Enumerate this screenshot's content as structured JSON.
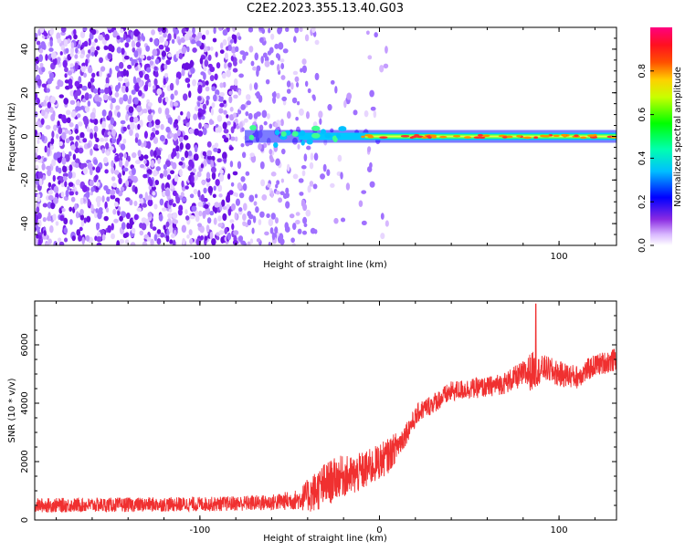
{
  "figure": {
    "title": "C2E2.2023.355.13.40.G03"
  },
  "chart_data": [
    {
      "type": "heatmap",
      "xlabel": "Height of straight line (km)",
      "ylabel": "Frequency (Hz)",
      "xlim": [
        -192,
        132
      ],
      "ylim": [
        -50,
        50
      ],
      "xticks": [
        -100,
        0,
        100
      ],
      "xtick_labels": [
        "-100",
        "",
        "100"
      ],
      "yticks": [
        -40,
        -20,
        0,
        20,
        40
      ],
      "ytick_labels": [
        "-40",
        "-20",
        "0",
        "20",
        "40"
      ],
      "colorbar": {
        "label": "Normalized spectral amplitude",
        "range": [
          0,
          1
        ],
        "ticks": [
          0.0,
          0.2,
          0.4,
          0.6,
          0.8
        ],
        "tick_labels": [
          "0.0",
          "0.2",
          "0.4",
          "0.6",
          "0.8"
        ]
      },
      "features": {
        "noise_region_x": [
          -192,
          -20
        ],
        "signal_line_frequency": 0,
        "signal_start_x": -75,
        "signal_x": [
          -75,
          132
        ]
      },
      "grid": false
    },
    {
      "type": "line",
      "xlabel": "Height of straight line (km)",
      "ylabel": "SNR (10 * v/v)",
      "xlim": [
        -192,
        132
      ],
      "ylim": [
        0,
        7500
      ],
      "xticks": [
        -100,
        0,
        100
      ],
      "xtick_labels": [
        "-100",
        "0",
        "100"
      ],
      "yticks": [
        0,
        2000,
        4000,
        6000
      ],
      "ytick_labels": [
        "0",
        "2000",
        "4000",
        "6000"
      ],
      "line_color": "#f03030",
      "grid": false,
      "envelope": {
        "x": [
          -192,
          -140,
          -90,
          -60,
          -45,
          -38,
          -30,
          -22,
          -15,
          -5,
          5,
          12,
          18,
          22,
          30,
          40,
          50,
          60,
          70,
          80,
          85,
          88,
          92,
          100,
          110,
          120,
          132
        ],
        "y": [
          500,
          520,
          550,
          600,
          700,
          900,
          1200,
          1500,
          1500,
          1800,
          2200,
          2700,
          3300,
          3700,
          4000,
          4400,
          4500,
          4550,
          4700,
          5000,
          5100,
          5100,
          5200,
          5000,
          4900,
          5300,
          5500
        ],
        "noise": [
          250,
          250,
          250,
          280,
          350,
          650,
          800,
          700,
          700,
          650,
          600,
          450,
          350,
          350,
          350,
          350,
          350,
          350,
          380,
          450,
          700,
          500,
          450,
          450,
          400,
          380,
          400
        ]
      },
      "peak": {
        "x": 87,
        "y": 7400
      }
    }
  ]
}
